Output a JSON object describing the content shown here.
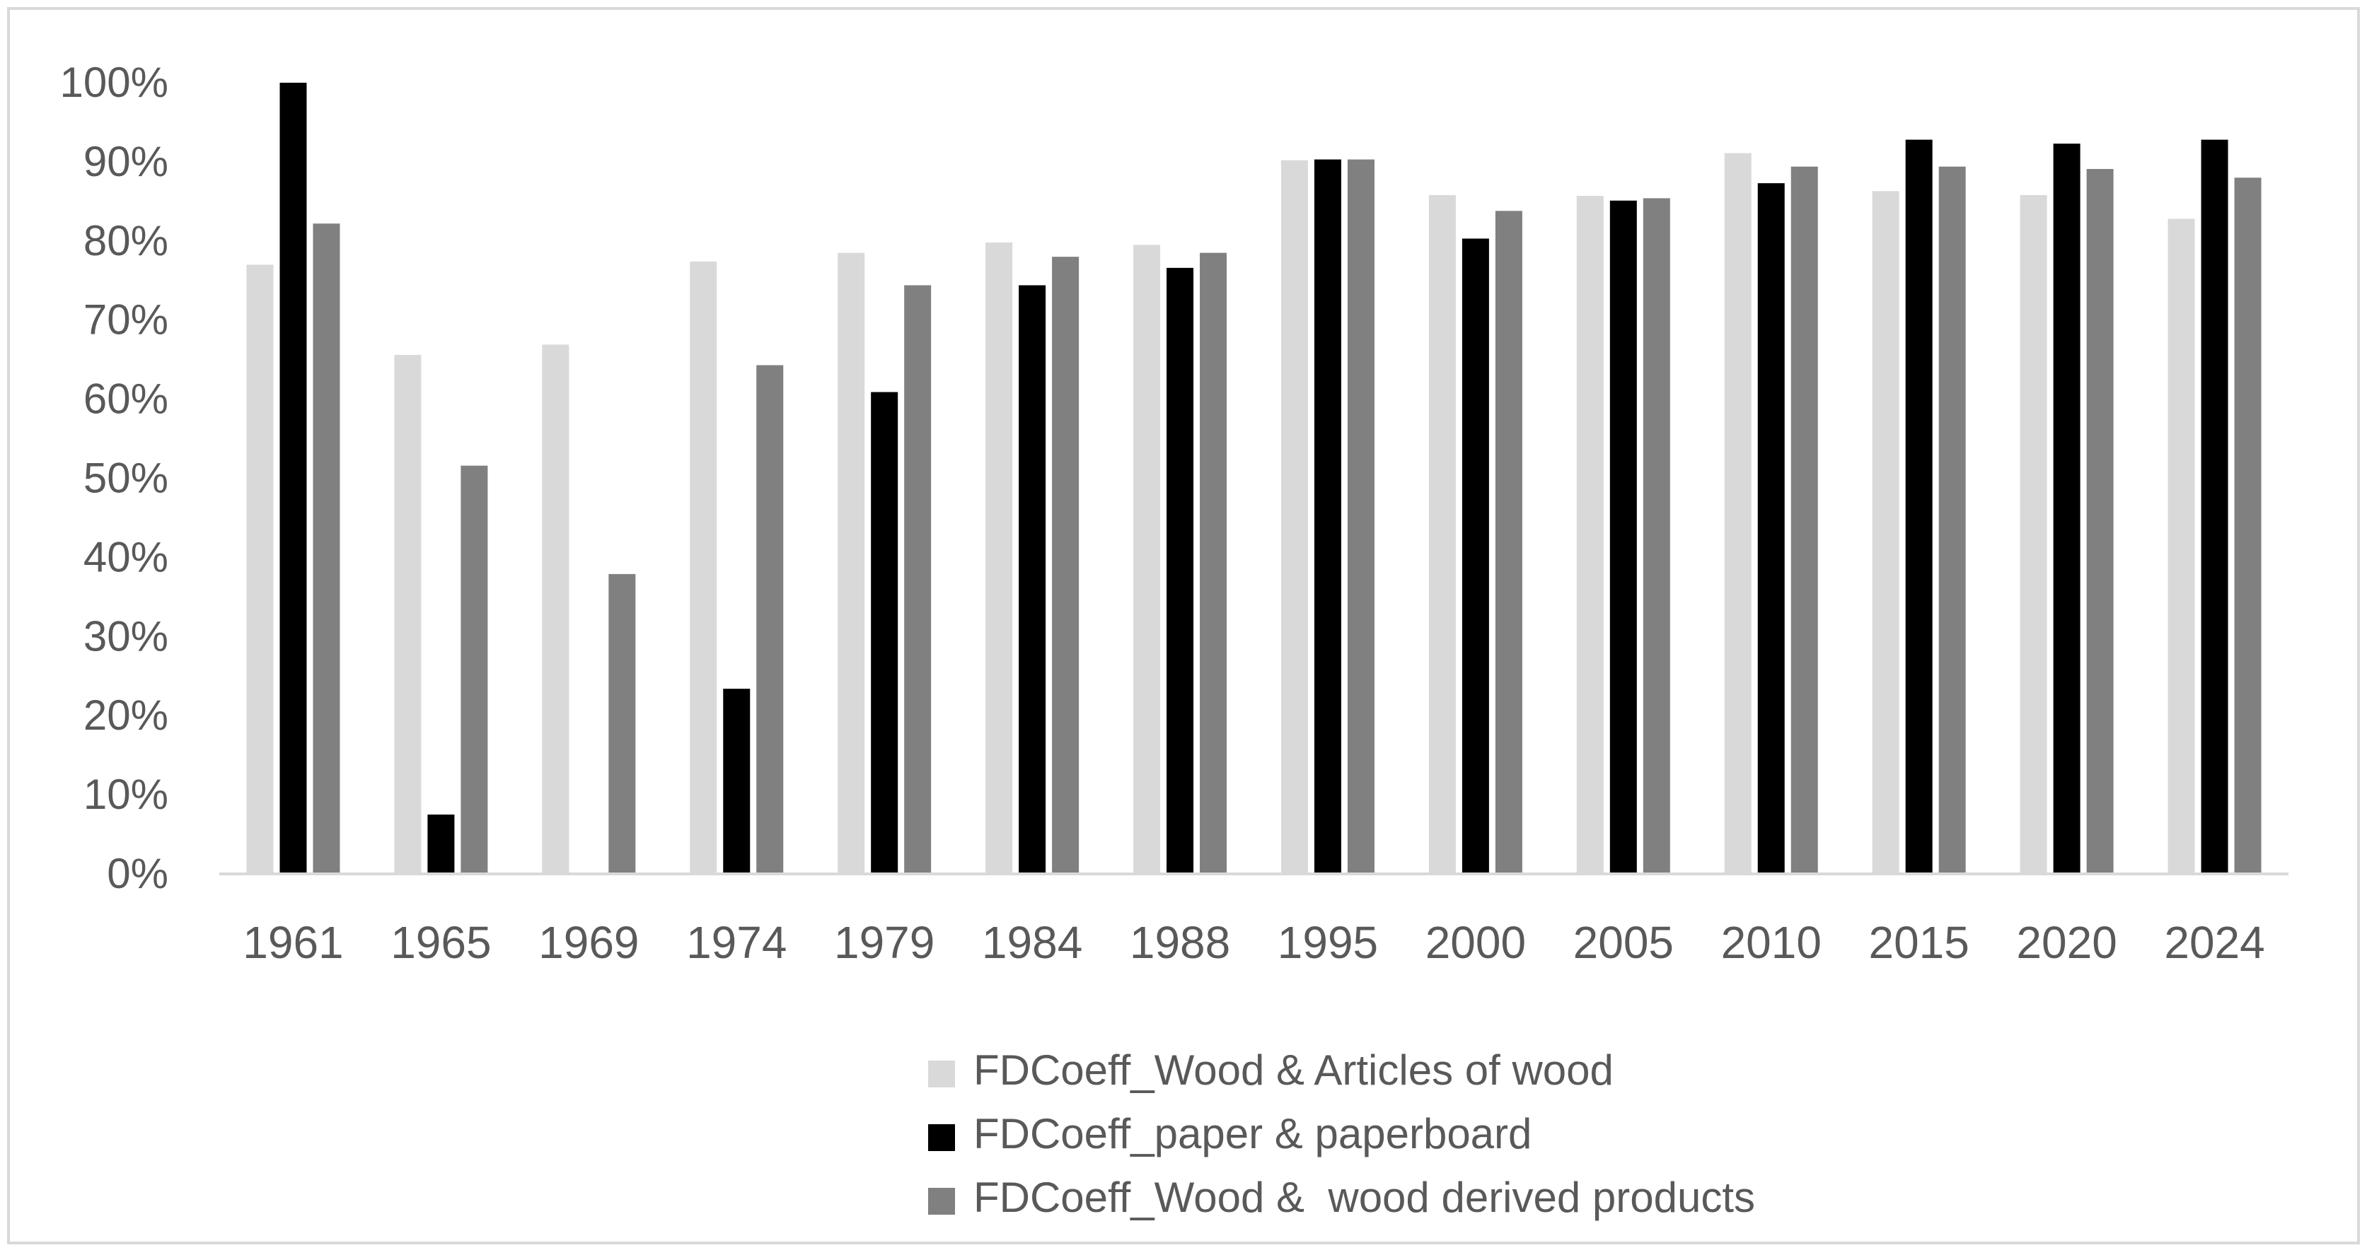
{
  "chart_data": {
    "type": "bar",
    "title": "",
    "xlabel": "",
    "ylabel": "",
    "ylim": [
      0,
      100
    ],
    "y_tick_values": [
      0,
      10,
      20,
      30,
      40,
      50,
      60,
      70,
      80,
      90,
      100
    ],
    "y_tick_labels": [
      "0%",
      "10%",
      "20%",
      "30%",
      "40%",
      "50%",
      "60%",
      "70%",
      "80%",
      "90%",
      "100%"
    ],
    "grid": false,
    "legend_position": "bottom-right",
    "categories": [
      "1961",
      "1965",
      "1969",
      "1974",
      "1979",
      "1984",
      "1988",
      "1995",
      "2000",
      "2005",
      "2010",
      "2015",
      "2020",
      "2024"
    ],
    "series": [
      {
        "name": "FDCoeff_Wood & Articles of wood",
        "color": "#d9d9d9",
        "values": [
          77,
          65.6,
          66.9,
          77.4,
          78.5,
          79.8,
          79.5,
          90.2,
          85.8,
          85.7,
          91.1,
          86.3,
          85.8,
          82.8
        ]
      },
      {
        "name": "FDCoeff_paper & paperboard",
        "color": "#000000",
        "values": [
          100,
          7.5,
          0,
          23.4,
          60.9,
          74.4,
          76.6,
          90.3,
          80.3,
          85.1,
          87.3,
          92.8,
          92.3,
          92.8
        ]
      },
      {
        "name": "FDCoeff_Wood &  wood derived products",
        "color": "#808080",
        "values": [
          82.2,
          51.6,
          37.9,
          64.3,
          74.4,
          78,
          78.5,
          90.3,
          83.8,
          85.4,
          89.4,
          89.4,
          89.1,
          88
        ]
      }
    ]
  }
}
